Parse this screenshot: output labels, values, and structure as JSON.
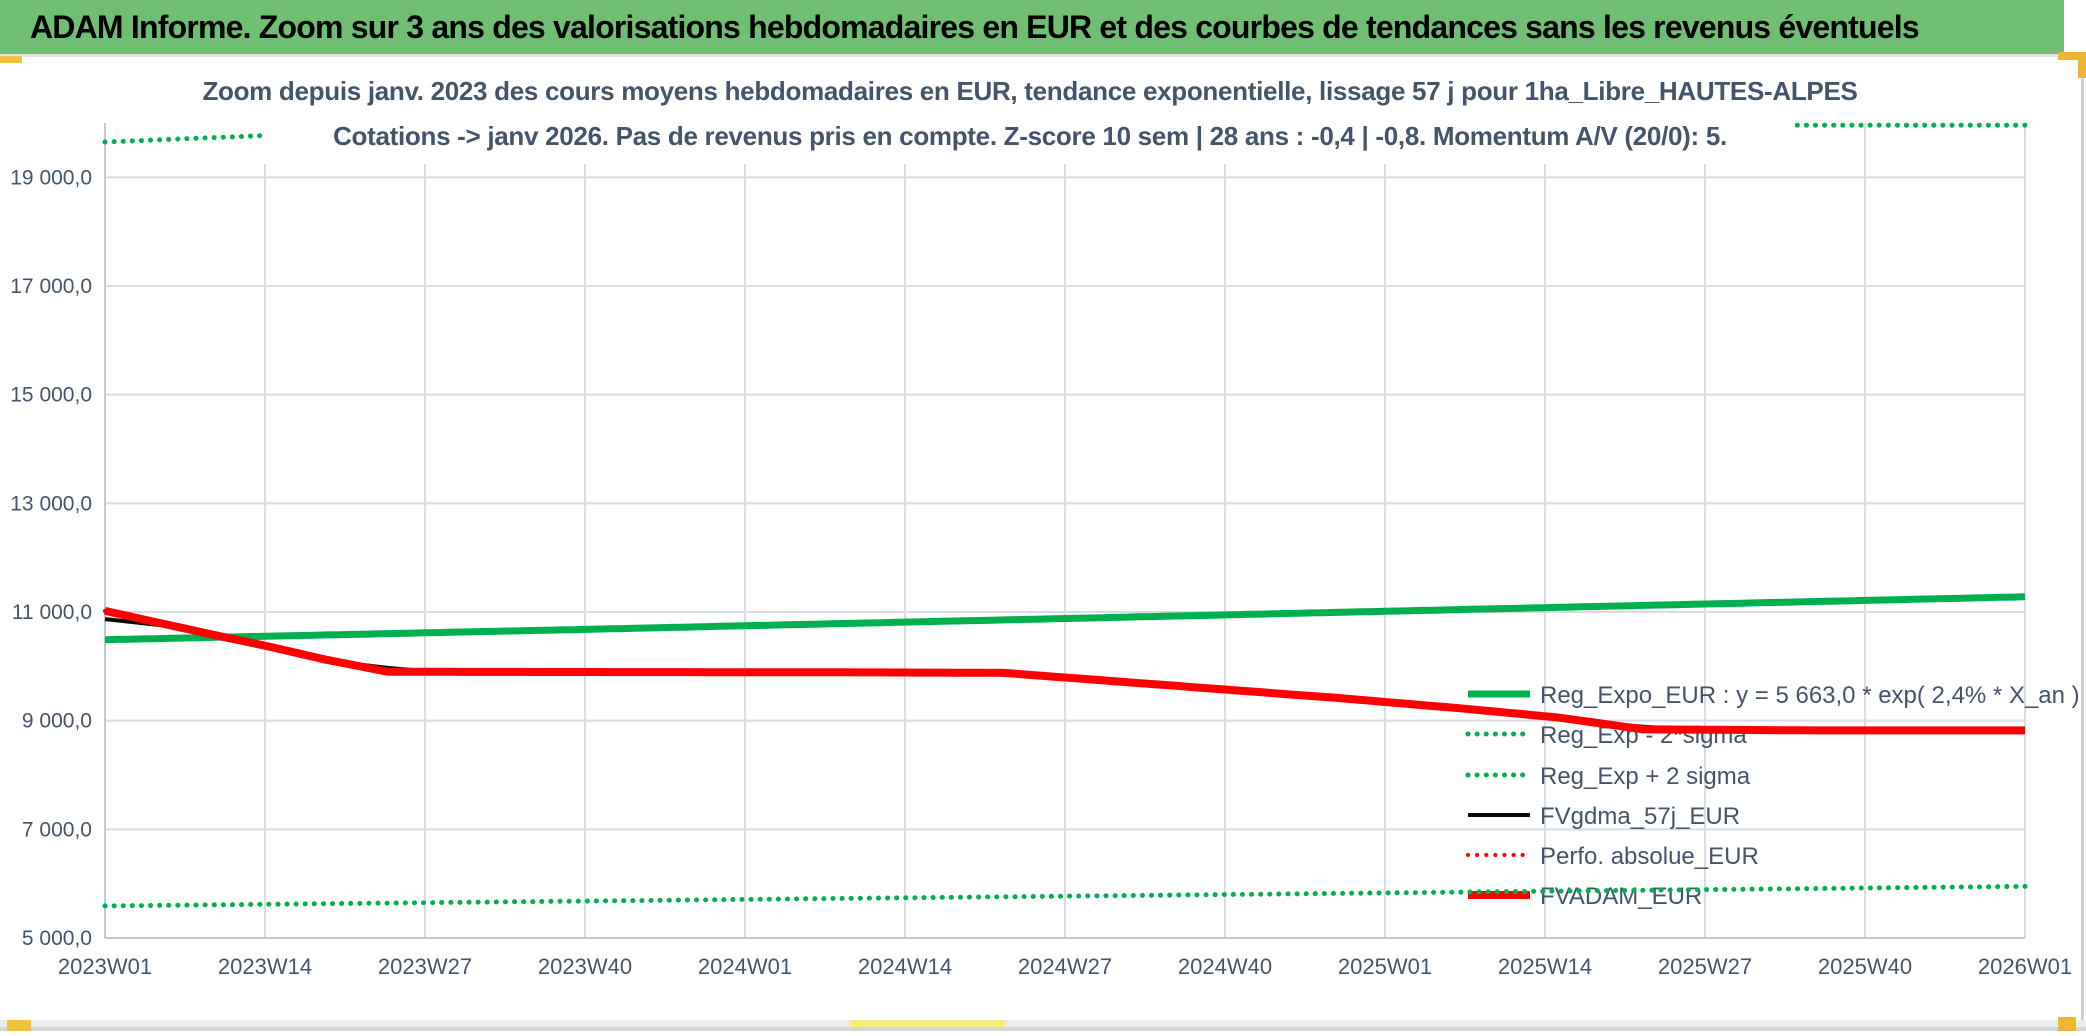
{
  "header": {
    "title": "ADAM Informe. Zoom sur 3 ans des valorisations hebdomadaires en EUR et des courbes de tendances sans les revenus éventuels"
  },
  "colors": {
    "header_green": "#6FBE73",
    "line_green": "#00B050",
    "line_red": "#FE0000",
    "line_black": "#0A0A0A",
    "text_slate": "#44546A",
    "grid": "#D9DDE3",
    "axis": "#C3C9D0",
    "gold_accent": "#EDB637"
  },
  "chart_data": {
    "type": "line",
    "title_line1": "Zoom depuis janv. 2023 des cours moyens hebdomadaires en EUR, tendance exponentielle, lissage 57 j pour 1ha_Libre_HAUTES-ALPES",
    "title_line2": "Cotations -> janv 2026. Pas de revenus pris en compte. Z-score 10 sem | 28 ans : -0,4 | -0,8. Momentum A/V (20/0): 5.",
    "ylim": [
      5000,
      20000
    ],
    "x_weeks": 156,
    "grid": true,
    "legend_position": "inside-bottom-right",
    "y_ticks": [
      {
        "value": 5000,
        "label": "5 000,0"
      },
      {
        "value": 7000,
        "label": "7 000,0"
      },
      {
        "value": 9000,
        "label": "9 000,0"
      },
      {
        "value": 11000,
        "label": "11 000,0"
      },
      {
        "value": 13000,
        "label": "13 000,0"
      },
      {
        "value": 15000,
        "label": "15 000,0"
      },
      {
        "value": 17000,
        "label": "17 000,0"
      },
      {
        "value": 19000,
        "label": "19 000,0"
      }
    ],
    "x_ticks": [
      "2023W01",
      "2023W14",
      "2023W27",
      "2023W40",
      "2024W01",
      "2024W14",
      "2024W27",
      "2024W40",
      "2025W01",
      "2025W14",
      "2025W27",
      "2025W40",
      "2026W01"
    ],
    "series": [
      {
        "name": "Reg_Expo_EUR : y = 5 663,0 * exp( 2,4% *  X_an )",
        "color": "green",
        "style": "solid",
        "width": 7,
        "keypoints": [
          [
            0,
            10490
          ],
          [
            39,
            10680
          ],
          [
            78,
            10880
          ],
          [
            117,
            11080
          ],
          [
            156,
            11280
          ]
        ]
      },
      {
        "name": "Reg_Exp - 2*sigma",
        "color": "green",
        "style": "dotted",
        "width": 5,
        "keypoints": [
          [
            0,
            5590
          ],
          [
            52,
            5710
          ],
          [
            104,
            5830
          ],
          [
            156,
            5950
          ]
        ]
      },
      {
        "name": "Reg_Exp + 2 sigma",
        "color": "green",
        "style": "dotted",
        "width": 5,
        "keypoints": [
          [
            0,
            19650
          ],
          [
            13,
            19770
          ],
          [
            34,
            19960
          ],
          [
            156,
            19960
          ]
        ]
      },
      {
        "name": "FVgdma_57j_EUR",
        "color": "black",
        "style": "solid",
        "width": 4,
        "derive": "moving_average_of_FVADAM_EUR",
        "window_weeks": 13
      },
      {
        "name": "Perfo. absolue_EUR",
        "color": "red",
        "style": "dotted",
        "width": 4,
        "keypoints": [
          [
            0,
            11020
          ],
          [
            4,
            10820
          ],
          [
            8,
            10620
          ],
          [
            13,
            10380
          ],
          [
            18,
            10120
          ],
          [
            23,
            9900
          ],
          [
            40,
            9895
          ],
          [
            60,
            9890
          ],
          [
            73,
            9880
          ],
          [
            80,
            9760
          ],
          [
            90,
            9590
          ],
          [
            100,
            9420
          ],
          [
            110,
            9230
          ],
          [
            118,
            9060
          ],
          [
            125,
            8840
          ],
          [
            140,
            8820
          ],
          [
            156,
            8820
          ]
        ]
      },
      {
        "name": "FVADAM_EUR",
        "color": "red",
        "style": "solid",
        "width": 8,
        "keypoints": [
          [
            0,
            11020
          ],
          [
            4,
            10820
          ],
          [
            8,
            10620
          ],
          [
            13,
            10380
          ],
          [
            18,
            10120
          ],
          [
            23,
            9900
          ],
          [
            40,
            9895
          ],
          [
            60,
            9890
          ],
          [
            73,
            9880
          ],
          [
            80,
            9760
          ],
          [
            90,
            9590
          ],
          [
            100,
            9420
          ],
          [
            110,
            9230
          ],
          [
            118,
            9060
          ],
          [
            125,
            8840
          ],
          [
            140,
            8820
          ],
          [
            156,
            8820
          ]
        ]
      }
    ]
  }
}
